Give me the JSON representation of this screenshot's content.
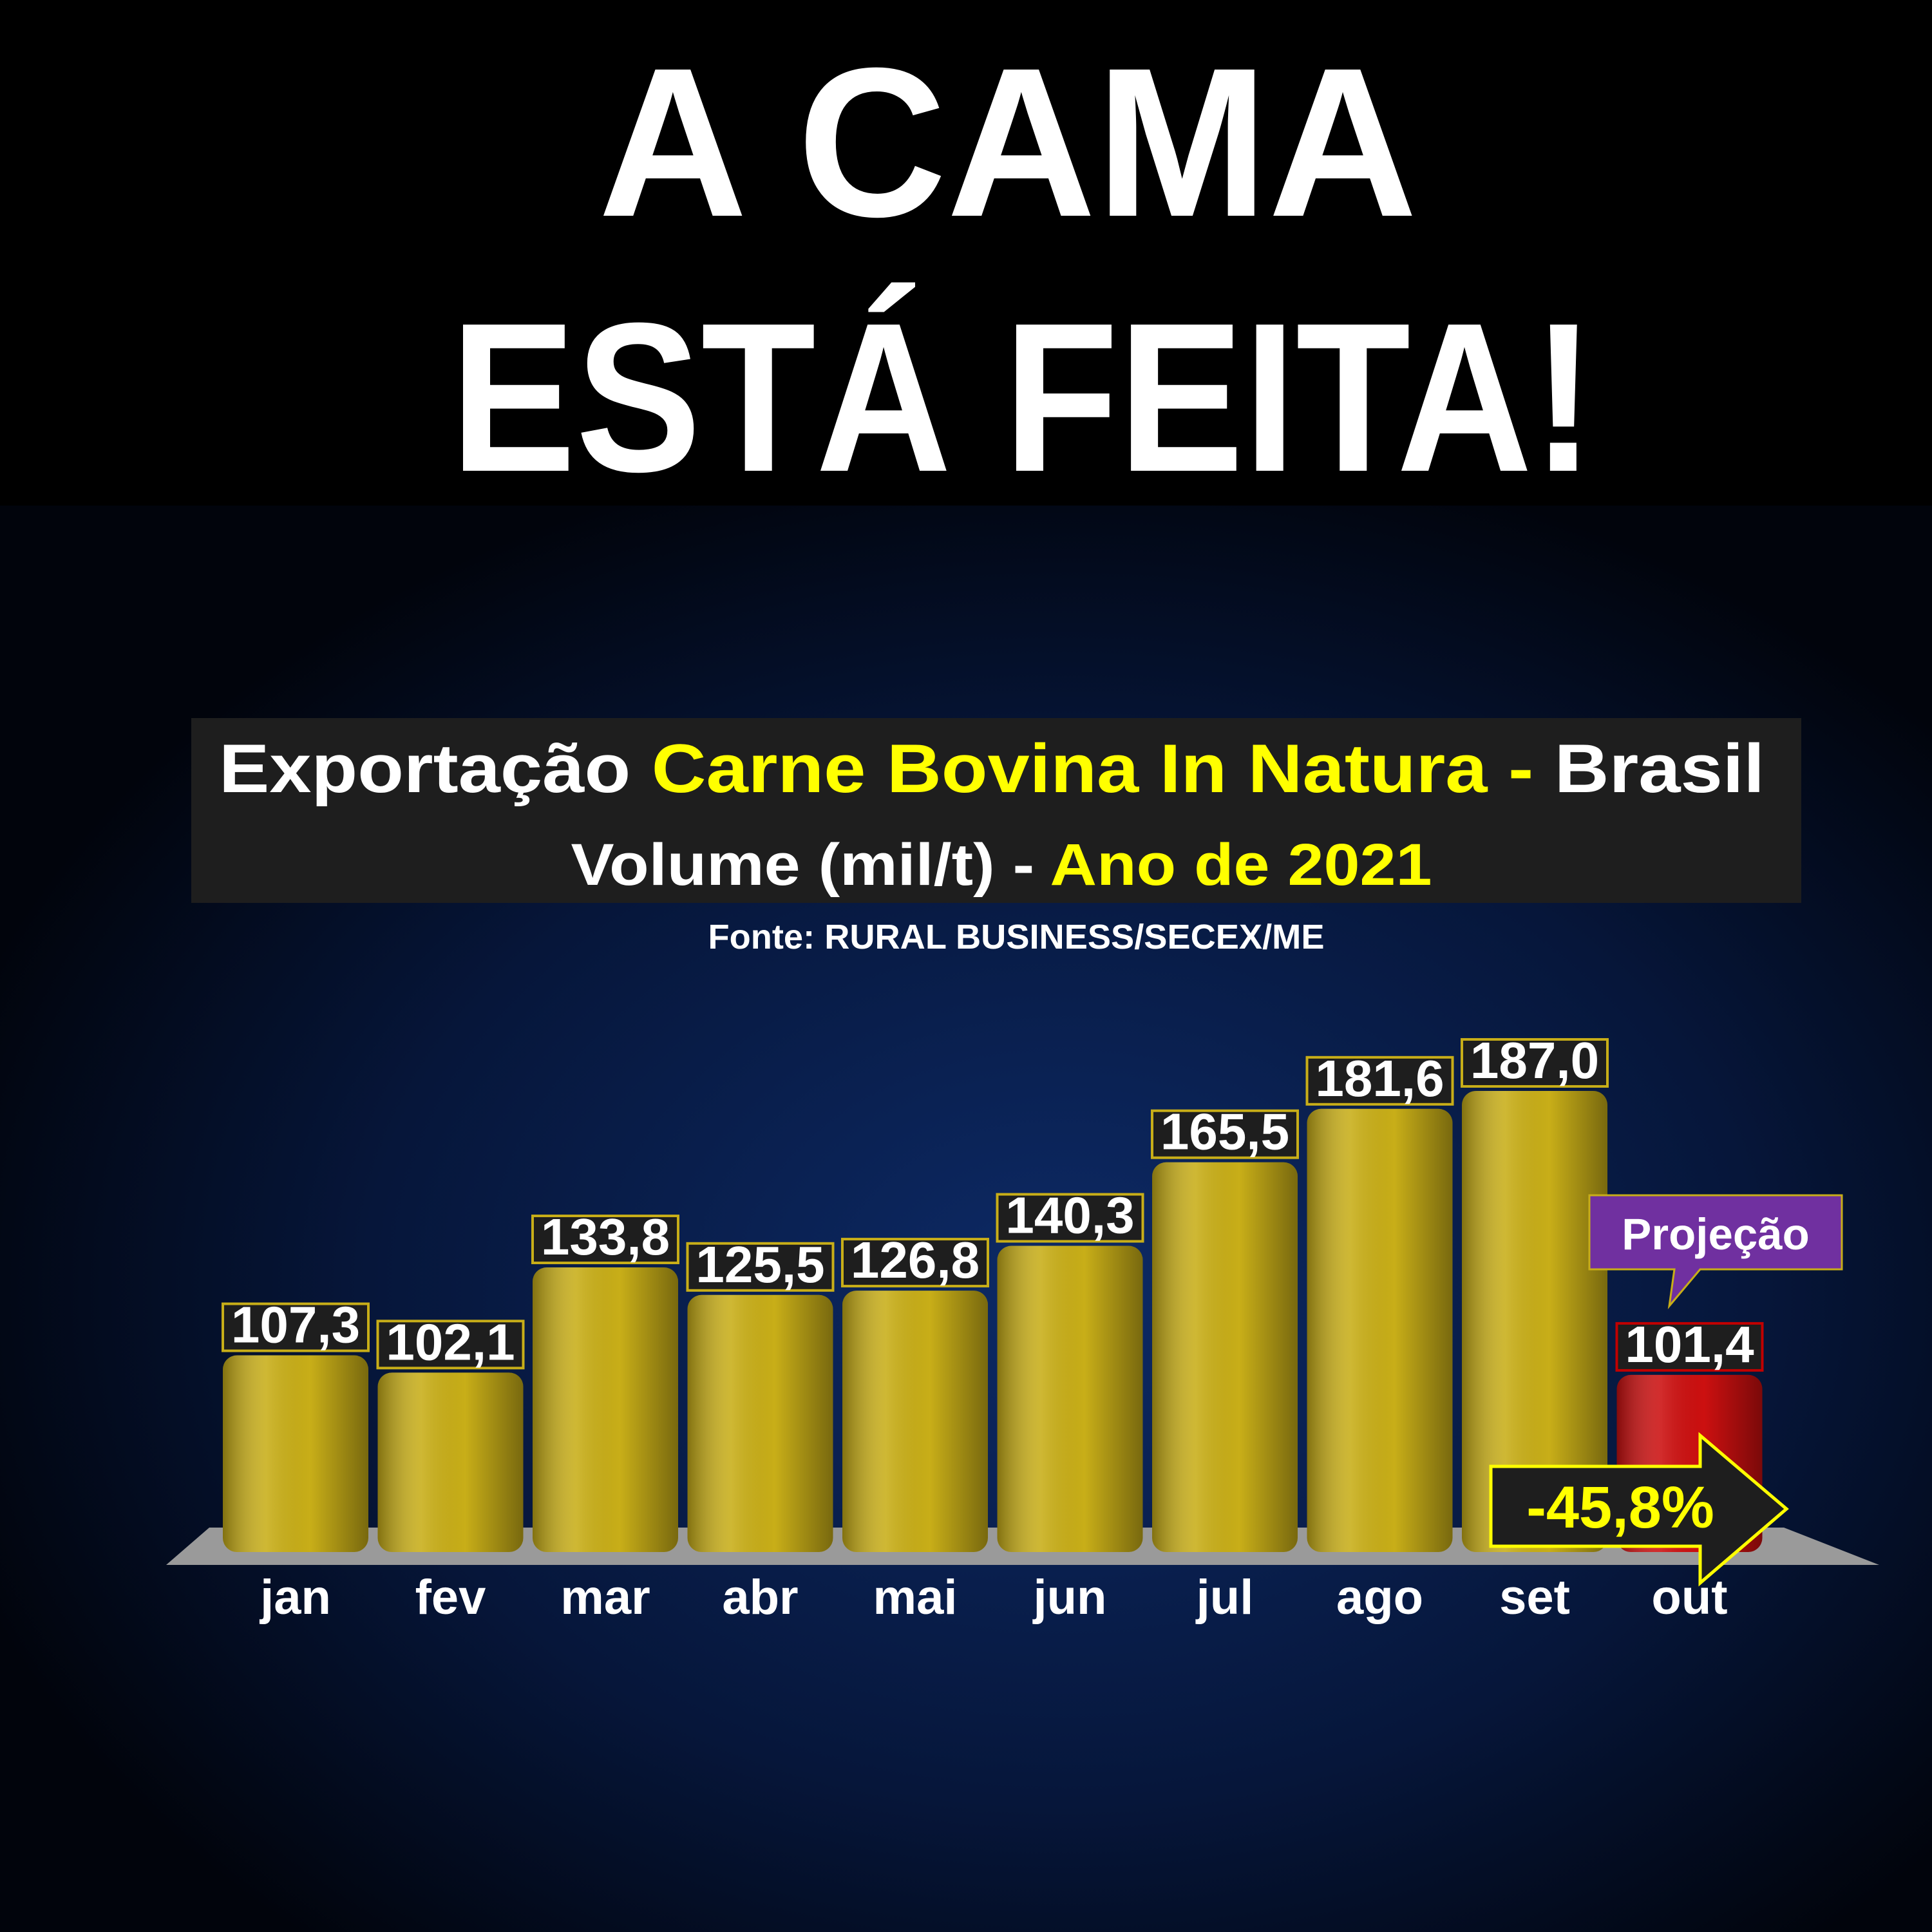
{
  "headline": [
    "A CAMA",
    "ESTÁ FEITA!"
  ],
  "chart_data": {
    "type": "bar",
    "title": [
      "Exportação",
      "Carne Bovina In Natura -",
      "Brasil"
    ],
    "title_colors": [
      "#ffffff",
      "#ffff00",
      "#ffffff"
    ],
    "subtitle": [
      "Volume (mil/t) -",
      "Ano de 2021"
    ],
    "subtitle_colors": [
      "#ffffff",
      "#ffff00"
    ],
    "source": "Fonte: RURAL BUSINESS/SECEX/ME",
    "categories": [
      "jan",
      "fev",
      "mar",
      "abr",
      "mai",
      "jun",
      "jul",
      "ago",
      "set",
      "out"
    ],
    "values": [
      107.3,
      102.1,
      133.8,
      125.5,
      126.8,
      140.3,
      165.5,
      181.6,
      187.0,
      101.4
    ],
    "value_labels": [
      "107,3",
      "102,1",
      "133,8",
      "125,5",
      "126,8",
      "140,3",
      "165,5",
      "181,6",
      "187,0",
      "101,4"
    ],
    "colors": [
      "#c8ae18",
      "#c8ae18",
      "#c8ae18",
      "#c8ae18",
      "#c8ae18",
      "#c8ae18",
      "#c8ae18",
      "#c8ae18",
      "#c8ae18",
      "#cc1010"
    ],
    "ylim": [
      48,
      200
    ],
    "annotations": [
      {
        "text": "Projeção",
        "color": "#7030a0"
      },
      {
        "text": "-45,8%",
        "color": "#ffff00"
      }
    ]
  }
}
